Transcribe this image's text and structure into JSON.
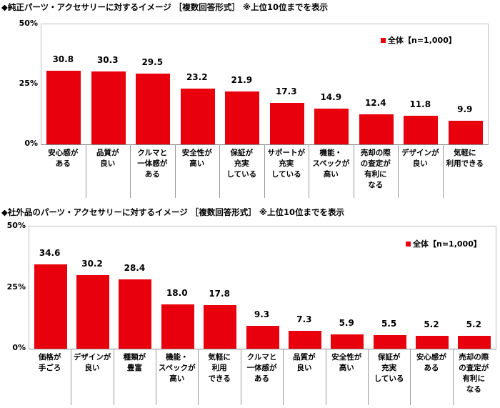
{
  "chart_data": [
    {
      "type": "bar",
      "title": "◆純正パーツ・アクセサリーに対するイメージ ［複数回答形式］ ※上位10位までを表示",
      "legend": "全体【n=1,000】",
      "legend_position": "top-right",
      "yticks": [
        "50%",
        "25%",
        "0%"
      ],
      "ylim": [
        0,
        50
      ],
      "categories": [
        "安心感が\nある",
        "品質が\n良い",
        "クルマと\n一体感が\nある",
        "安全性が\n高い",
        "保証が\n充実\nしている",
        "サポートが\n充実\nしている",
        "機能・\nスペックが\n高い",
        "売却の際\nの査定が\n有利に\nなる",
        "デザインが\n良い",
        "気軽に\n利用できる"
      ],
      "values": [
        30.8,
        30.3,
        29.5,
        23.2,
        21.9,
        17.3,
        14.9,
        12.4,
        11.8,
        9.9
      ],
      "labels": [
        "30.8",
        "30.3",
        "29.5",
        "23.2",
        "21.9",
        "17.3",
        "14.9",
        "12.4",
        "11.8",
        "9.9"
      ]
    },
    {
      "type": "bar",
      "title": "◆社外品のパーツ・アクセサリーに対するイメージ ［複数回答形式］ ※上位10位までを表示",
      "legend": "全体【n=1,000】",
      "legend_position": "top-right",
      "yticks": [
        "50%",
        "25%",
        "0%"
      ],
      "ylim": [
        0,
        50
      ],
      "categories": [
        "価格が\n手ごろ",
        "デザインが\n良い",
        "種類が\n豊富",
        "機能・\nスペックが\n高い",
        "気軽に\n利用\nできる",
        "クルマと\n一体感が\nある",
        "品質が\n良い",
        "安全性が\n高い",
        "保証が\n充実\nしている",
        "安心感が\nある",
        "売却の際\nの査定が\n有利に\nなる"
      ],
      "values": [
        34.6,
        30.2,
        28.4,
        18.0,
        17.8,
        9.3,
        7.3,
        5.9,
        5.5,
        5.2,
        5.2
      ],
      "labels": [
        "34.6",
        "30.2",
        "28.4",
        "18.0",
        "17.8",
        "9.3",
        "7.3",
        "5.9",
        "5.5",
        "5.2",
        "5.2"
      ]
    }
  ],
  "colors": {
    "bar": "#e8000d"
  }
}
